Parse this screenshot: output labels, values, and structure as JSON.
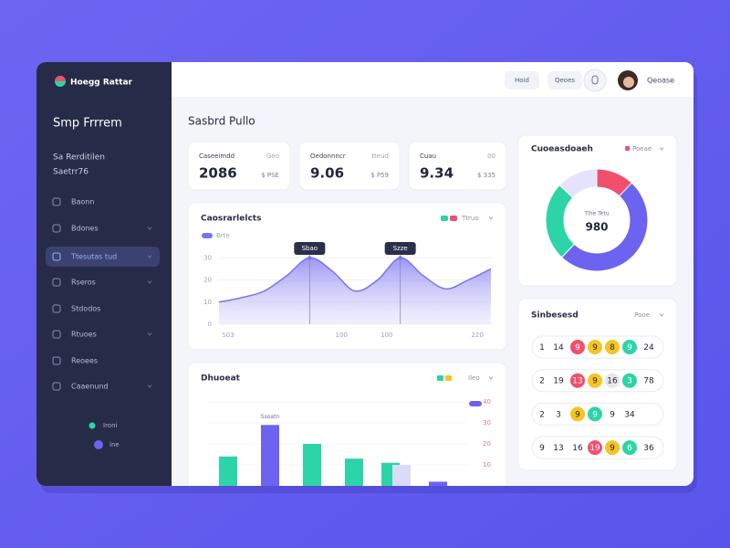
{
  "sidebar": {
    "brand": "Hoegg Rattar",
    "title": "Smp Frrrem",
    "subtitle": [
      "Sa Rerditilen",
      "Saetrr76"
    ],
    "menu": [
      "Baonn",
      "Bdones",
      "Ttesutas  tud",
      "Rseros",
      "Stdodos",
      "Rtuoes",
      "Reoees",
      "Caaenund"
    ],
    "legend": [
      "Ironi",
      "ine"
    ]
  },
  "topbar": {
    "links": [
      "Hoid",
      "Qeoes"
    ],
    "user": "Qeoase"
  },
  "heading": "Sasbrd Pullo",
  "stats": [
    {
      "label": "Caseeimdd",
      "tag": "Geo",
      "value": "2086",
      "delta": "$ PSE"
    },
    {
      "label": "Oedonnncr",
      "tag": "tteud",
      "value": "9.06",
      "delta": "$ P59"
    },
    {
      "label": "Cuau",
      "tag": "00",
      "value": "9.34",
      "delta": "$ 335"
    }
  ],
  "chart_data": [
    {
      "type": "area",
      "title": "Caosrarlelcts",
      "legend_label": "Ttruo",
      "categories": [
        "S03",
        null,
        null,
        null,
        null,
        "100",
        null,
        "100",
        null,
        null,
        null,
        "220",
        null
      ],
      "series": [
        {
          "name": "Brte",
          "color": "#7b73f0",
          "values": [
            10,
            12,
            15,
            22,
            30,
            24,
            15,
            20,
            30,
            22,
            16,
            20,
            25
          ]
        }
      ],
      "ylim": [
        0,
        40
      ],
      "yticks": [
        0,
        10,
        20,
        30
      ],
      "annotations": [
        {
          "label": "Sbao",
          "index": 4
        },
        {
          "label": "Szze",
          "index": 8
        }
      ]
    },
    {
      "type": "pie",
      "title": "Cuoeasdoaeh",
      "legend_label": "Poeae",
      "center_label": "Tlhe Tetu",
      "center_value": "980",
      "values": [
        12,
        50,
        25,
        13
      ],
      "colors": [
        "#f0506e",
        "#6c63f0",
        "#2dd4a7",
        "#e4e3fb"
      ]
    },
    {
      "type": "bar",
      "title": "Dhuoeat",
      "legend_label": "Ileo",
      "annotation": "Ssoatn",
      "categories": [
        null,
        null,
        null,
        null,
        null,
        null
      ],
      "series": [
        {
          "color": "#2dd4a7",
          "values": [
            14,
            null,
            20,
            13,
            11,
            null
          ]
        },
        {
          "color": "#6c63f0",
          "values": [
            null,
            29,
            null,
            null,
            null,
            2
          ]
        },
        {
          "color": "#d9dcf7",
          "values": [
            null,
            null,
            null,
            null,
            10,
            null
          ]
        }
      ],
      "ylim": [
        0,
        40
      ],
      "yticks": [
        10,
        20,
        30,
        40
      ]
    }
  ],
  "rows_card": {
    "title": "Sinbesesd",
    "filter": "Pooe",
    "rows": [
      [
        {
          "text": "1"
        },
        {
          "text": "14"
        },
        {
          "text": "9",
          "color": "#f0506e"
        },
        {
          "text": "9",
          "color": "#f5c524"
        },
        {
          "text": "8",
          "color": "#f5c524"
        },
        {
          "text": "9",
          "color": "#2dd4a7"
        },
        {
          "text": "24"
        }
      ],
      [
        {
          "text": "2"
        },
        {
          "text": "19"
        },
        {
          "text": "13",
          "color": "#f0506e"
        },
        {
          "text": "9",
          "color": "#f5c524"
        },
        {
          "text": "16",
          "color": "#e6e7ee"
        },
        {
          "text": "3",
          "color": "#2dd4a7"
        },
        {
          "text": "78"
        }
      ],
      [
        {
          "text": "2"
        },
        {
          "text": "3"
        },
        {
          "text": "9",
          "color": "#f5c524"
        },
        {
          "text": "9",
          "color": "#2dd4a7"
        },
        {
          "text": "9"
        },
        {
          "text": "34"
        }
      ],
      [
        {
          "text": "9"
        },
        {
          "text": "13"
        },
        {
          "text": "16"
        },
        {
          "text": "19",
          "color": "#f0506e"
        },
        {
          "text": "9",
          "color": "#f5c524"
        },
        {
          "text": "6",
          "color": "#2dd4a7"
        },
        {
          "text": "36"
        }
      ]
    ]
  }
}
